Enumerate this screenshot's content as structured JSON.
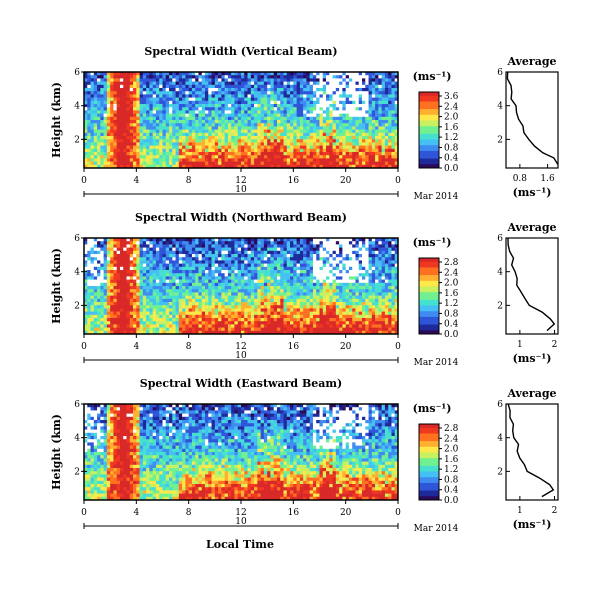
{
  "colorscale": [
    "#2a0a5a",
    "#1f2a9a",
    "#2f55d8",
    "#3f8cf0",
    "#44c0f2",
    "#46e0d0",
    "#70f090",
    "#c8f060",
    "#ffe84a",
    "#ffb030",
    "#ff7020",
    "#f03820",
    "#d82828"
  ],
  "xlabel": "Local Time",
  "date_label": "Mar 2014",
  "chart_data": [
    {
      "type": "heatmap",
      "title": "Spectral Width (Vertical Beam)",
      "ylabel": "Height (km)",
      "yticks": [
        "6",
        "4",
        "2"
      ],
      "xticks": [
        "0",
        "4",
        "8",
        "12",
        "16",
        "20",
        "0"
      ],
      "day_label": "10",
      "xlim": [
        0,
        24
      ],
      "ylim": [
        0.3,
        6
      ],
      "colorbar": {
        "unit": "(ms⁻¹)",
        "ticks": [
          "3.6",
          "2.4",
          "2.0",
          "1.6",
          "1.2",
          "0.8",
          "0.4",
          "0.0"
        ]
      },
      "profile": {
        "title": "Average",
        "xlabel": "(ms⁻¹)",
        "xticks": [
          "0.8",
          "1.6"
        ],
        "xlim": [
          0.4,
          1.9
        ],
        "yticks": [
          "6",
          "4",
          "2"
        ],
        "height": [
          0.5,
          0.9,
          1.2,
          1.6,
          2.0,
          2.4,
          2.8,
          3.2,
          3.6,
          4.0,
          4.4,
          4.8,
          5.2,
          5.6,
          6.0
        ],
        "value": [
          1.9,
          1.75,
          1.5,
          1.2,
          1.05,
          0.95,
          0.85,
          0.78,
          0.72,
          0.65,
          0.58,
          0.56,
          0.52,
          0.48,
          0.42
        ]
      },
      "seed": 11
    },
    {
      "type": "heatmap",
      "title": "Spectral Width (Northward Beam)",
      "ylabel": "Height (km)",
      "yticks": [
        "6",
        "4",
        "2"
      ],
      "xticks": [
        "0",
        "4",
        "8",
        "12",
        "16",
        "20",
        "0"
      ],
      "day_label": "10",
      "xlim": [
        0,
        24
      ],
      "ylim": [
        0.3,
        6
      ],
      "colorbar": {
        "unit": "(ms⁻¹)",
        "ticks": [
          "2.8",
          "2.4",
          "2.0",
          "1.6",
          "1.2",
          "0.8",
          "0.4",
          "0.0"
        ]
      },
      "profile": {
        "title": "Average",
        "xlabel": "(ms⁻¹)",
        "xticks": [
          "1",
          "2"
        ],
        "xlim": [
          0.6,
          2.1
        ],
        "yticks": [
          "6",
          "4",
          "2"
        ],
        "height": [
          0.5,
          0.9,
          1.2,
          1.6,
          2.0,
          2.4,
          2.8,
          3.2,
          3.6,
          4.0,
          4.4,
          4.8,
          5.2,
          5.6,
          6.0
        ],
        "value": [
          1.75,
          2.0,
          1.9,
          1.6,
          1.3,
          1.15,
          1.0,
          0.95,
          0.9,
          0.85,
          0.8,
          0.78,
          0.72,
          0.68,
          0.62
        ]
      },
      "seed": 23
    },
    {
      "type": "heatmap",
      "title": "Spectral Width (Eastward Beam)",
      "ylabel": "Height (km)",
      "yticks": [
        "6",
        "4",
        "2"
      ],
      "xticks": [
        "0",
        "4",
        "8",
        "12",
        "16",
        "20",
        "0"
      ],
      "day_label": "10",
      "xlim": [
        0,
        24
      ],
      "ylim": [
        0.3,
        6
      ],
      "colorbar": {
        "unit": "(ms⁻¹)",
        "ticks": [
          "2.8",
          "2.4",
          "2.0",
          "1.6",
          "1.2",
          "0.8",
          "0.4",
          "0.0"
        ]
      },
      "profile": {
        "title": "Average",
        "xlabel": "(ms⁻¹)",
        "xticks": [
          "1",
          "2"
        ],
        "xlim": [
          0.6,
          2.1
        ],
        "yticks": [
          "6",
          "4",
          "2"
        ],
        "height": [
          0.5,
          0.9,
          1.2,
          1.6,
          2.0,
          2.4,
          2.8,
          3.2,
          3.6,
          4.0,
          4.4,
          4.8,
          5.2,
          5.6,
          6.0
        ],
        "value": [
          1.6,
          2.0,
          1.85,
          1.55,
          1.25,
          1.1,
          1.0,
          0.95,
          0.92,
          0.85,
          0.8,
          0.78,
          0.75,
          0.7,
          0.65
        ]
      },
      "seed": 37
    }
  ]
}
